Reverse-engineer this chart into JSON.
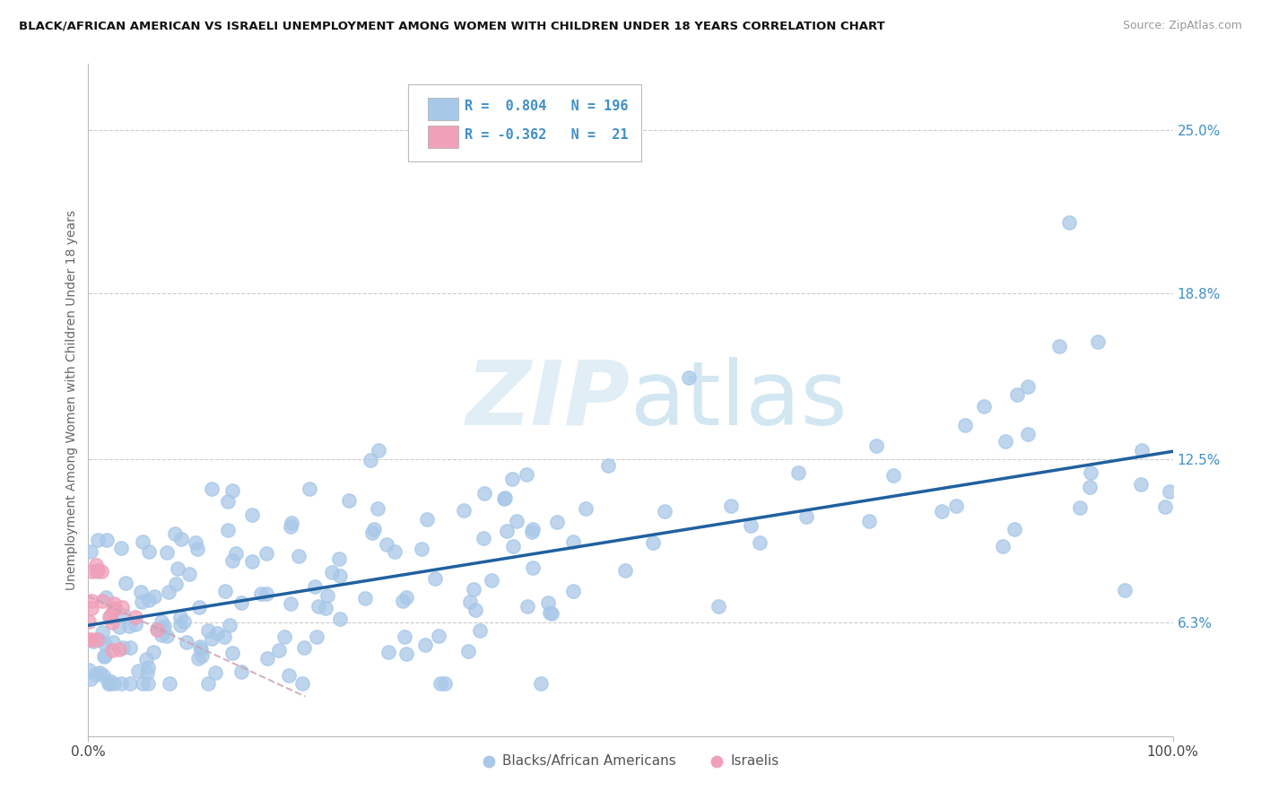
{
  "title": "BLACK/AFRICAN AMERICAN VS ISRAELI UNEMPLOYMENT AMONG WOMEN WITH CHILDREN UNDER 18 YEARS CORRELATION CHART",
  "source": "Source: ZipAtlas.com",
  "ylabel": "Unemployment Among Women with Children Under 18 years",
  "ytick_labels": [
    "6.3%",
    "12.5%",
    "18.8%",
    "25.0%"
  ],
  "ytick_values": [
    0.063,
    0.125,
    0.188,
    0.25
  ],
  "xlim": [
    0.0,
    1.0
  ],
  "ylim": [
    0.02,
    0.275
  ],
  "legend_r1": "R =  0.804",
  "legend_n1": "N = 196",
  "legend_r2": "R = -0.362",
  "legend_n2": "N =  21",
  "color_blue": "#A8C8E8",
  "color_pink": "#F0A0B8",
  "color_line_blue": "#2060A0",
  "color_tick_blue": "#4090C8",
  "watermark_color": "#D8E8F0",
  "background_color": "#FFFFFF",
  "grid_color": "#CCCCCC",
  "blue_line_start_y": 0.062,
  "blue_line_end_y": 0.128,
  "pink_line_start_y": 0.073,
  "pink_line_end_y": 0.035,
  "pink_line_end_x": 0.2
}
